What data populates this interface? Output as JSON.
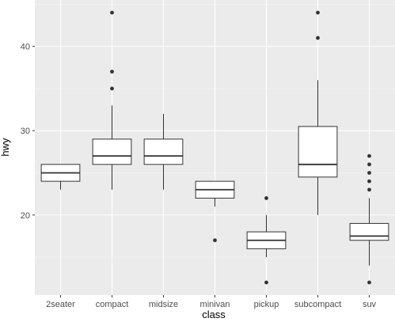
{
  "chart_data": {
    "type": "boxplot",
    "xlabel": "class",
    "ylabel": "hwy",
    "ylim": [
      10.5,
      45.5
    ],
    "yticks": [
      20,
      30,
      40
    ],
    "grid": true,
    "legend": "none",
    "colors": {
      "panel_bg": "#ebebeb",
      "grid_major": "#ffffff",
      "grid_minor": "#f5f5f5",
      "box_fill": "#ffffff",
      "box_stroke": "#333333",
      "outlier": "#333333"
    },
    "categories": [
      "2seater",
      "compact",
      "midsize",
      "minivan",
      "pickup",
      "subcompact",
      "suv"
    ],
    "boxes": [
      {
        "category": "2seater",
        "whisker_low": 23,
        "q1": 24,
        "median": 25,
        "q3": 26,
        "whisker_high": 26,
        "outliers": []
      },
      {
        "category": "compact",
        "whisker_low": 23,
        "q1": 26,
        "median": 27,
        "q3": 29,
        "whisker_high": 33,
        "outliers": [
          35,
          37,
          44
        ]
      },
      {
        "category": "midsize",
        "whisker_low": 23,
        "q1": 26,
        "median": 27,
        "q3": 29,
        "whisker_high": 32,
        "outliers": []
      },
      {
        "category": "minivan",
        "whisker_low": 21,
        "q1": 22,
        "median": 23,
        "q3": 24,
        "whisker_high": 24,
        "outliers": [
          17
        ]
      },
      {
        "category": "pickup",
        "whisker_low": 15,
        "q1": 16,
        "median": 17,
        "q3": 18,
        "whisker_high": 20,
        "outliers": [
          12,
          22
        ]
      },
      {
        "category": "subcompact",
        "whisker_low": 20,
        "q1": 24.5,
        "median": 26,
        "q3": 30.5,
        "whisker_high": 36,
        "outliers": [
          41,
          44
        ]
      },
      {
        "category": "suv",
        "whisker_low": 14,
        "q1": 17,
        "median": 17.5,
        "q3": 19,
        "whisker_high": 22,
        "outliers": [
          12,
          23,
          24,
          25,
          26,
          27
        ]
      }
    ]
  }
}
